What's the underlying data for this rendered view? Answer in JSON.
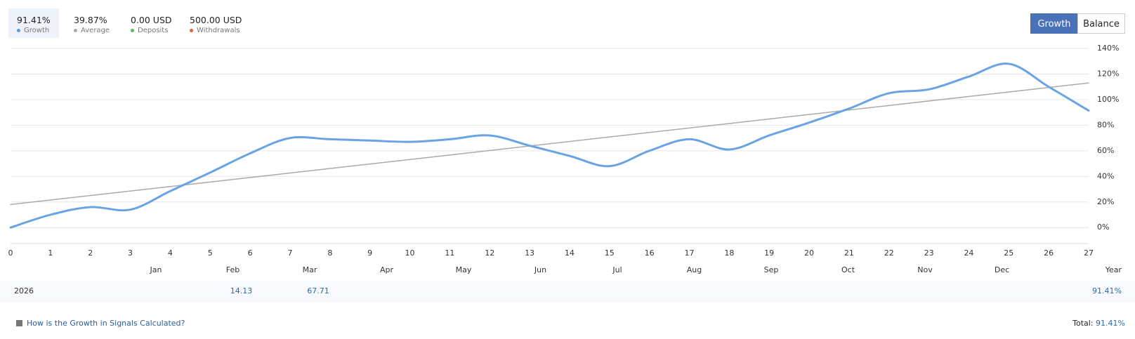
{
  "stats": [
    {
      "value": "91.41%",
      "label": "Growth",
      "color": "#5b9bd5"
    },
    {
      "value": "39.87%",
      "label": "Average",
      "color": "#aaaaaa"
    },
    {
      "value": "0.00 USD",
      "label": "Deposits",
      "color": "#5cb85c"
    },
    {
      "value": "500.00 USD",
      "label": "Withdrawals",
      "color": "#e8603c"
    }
  ],
  "buttons": [
    "Growth",
    "Balance"
  ],
  "chart_data": {
    "type": "line",
    "x": [
      0,
      1,
      2,
      3,
      4,
      5,
      6,
      7,
      8,
      9,
      10,
      11,
      12,
      13,
      14,
      15,
      16,
      17,
      18,
      19,
      20,
      21,
      22,
      23,
      24,
      25,
      26,
      27
    ],
    "series": [
      {
        "name": "Growth",
        "color": "#6aa3e4",
        "values": [
          0,
          10,
          16,
          14,
          28.5,
          43,
          58,
          70,
          69,
          68,
          67,
          69,
          72,
          64,
          56,
          48,
          60,
          69,
          61,
          72,
          82,
          93,
          105,
          108,
          118,
          128,
          110,
          91.41
        ]
      },
      {
        "name": "Average",
        "color": "#aaaaaa",
        "x": [
          0,
          27
        ],
        "values": [
          18,
          113
        ]
      }
    ],
    "xlim": [
      0,
      27
    ],
    "xticks": [
      0,
      1,
      2,
      3,
      4,
      5,
      6,
      7,
      8,
      9,
      10,
      11,
      12,
      13,
      14,
      15,
      16,
      17,
      18,
      19,
      20,
      21,
      22,
      23,
      24,
      25,
      26,
      27
    ],
    "ylim": [
      -12.5,
      140
    ],
    "yticks": [
      {
        "value": 0,
        "label": "0%"
      },
      {
        "value": 20,
        "label": "20%"
      },
      {
        "value": 40,
        "label": "40%"
      },
      {
        "value": 60,
        "label": "60%"
      },
      {
        "value": 80,
        "label": "80%"
      },
      {
        "value": 100,
        "label": "100%"
      },
      {
        "value": 120,
        "label": "120%"
      },
      {
        "value": 140,
        "label": "140%"
      }
    ],
    "grid": true
  },
  "table": {
    "header": [
      "Jan",
      "Feb",
      "Mar",
      "Apr",
      "May",
      "Jun",
      "Jul",
      "Aug",
      "Sep",
      "Oct",
      "Nov",
      "Dec",
      "Year"
    ],
    "rows": [
      {
        "label": "2026",
        "cells": [
          null,
          14.13,
          67.71,
          null,
          null,
          null,
          null,
          null,
          null,
          null,
          null,
          null,
          "91.41%"
        ]
      }
    ]
  },
  "footer": {
    "link": "How is the Growth in Signals Calculated?",
    "total_label": "Total:",
    "total_value": "91.41%"
  }
}
